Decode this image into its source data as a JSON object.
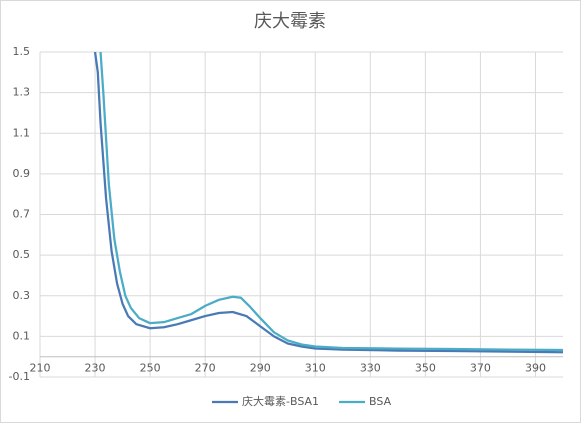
{
  "chart_data": {
    "type": "line",
    "title": "庆大霉素",
    "xlim": [
      210,
      400
    ],
    "xticks": [
      210,
      230,
      250,
      270,
      290,
      310,
      330,
      350,
      370,
      390
    ],
    "ylim": [
      -0.1,
      1.5
    ],
    "yticks": [
      -0.1,
      0.1,
      0.3,
      0.5,
      0.7,
      0.9,
      1.1,
      1.3,
      1.5
    ],
    "grid": true,
    "legend": "bottom",
    "series": [
      {
        "name": "庆大霉素-BSA1",
        "color": "#4a7ab5",
        "x": [
          230,
          231,
          232,
          234,
          236,
          238,
          240,
          242,
          245,
          250,
          255,
          260,
          265,
          270,
          275,
          280,
          285,
          290,
          295,
          300,
          305,
          310,
          320,
          340,
          360,
          380,
          400
        ],
        "values": [
          1.5,
          1.4,
          1.15,
          0.78,
          0.52,
          0.36,
          0.26,
          0.2,
          0.16,
          0.14,
          0.145,
          0.16,
          0.18,
          0.2,
          0.215,
          0.22,
          0.2,
          0.15,
          0.1,
          0.065,
          0.05,
          0.04,
          0.035,
          0.03,
          0.028,
          0.025,
          0.022
        ]
      },
      {
        "name": "BSA",
        "color": "#4bacc6",
        "x": [
          232,
          233,
          235,
          237,
          239,
          241,
          243,
          246,
          250,
          255,
          260,
          265,
          270,
          275,
          280,
          283,
          286,
          290,
          295,
          300,
          305,
          310,
          320,
          340,
          360,
          380,
          400
        ],
        "values": [
          1.5,
          1.3,
          0.85,
          0.58,
          0.42,
          0.3,
          0.24,
          0.19,
          0.165,
          0.17,
          0.19,
          0.21,
          0.25,
          0.28,
          0.295,
          0.29,
          0.25,
          0.19,
          0.12,
          0.08,
          0.06,
          0.05,
          0.043,
          0.04,
          0.038,
          0.035,
          0.033
        ]
      }
    ]
  }
}
